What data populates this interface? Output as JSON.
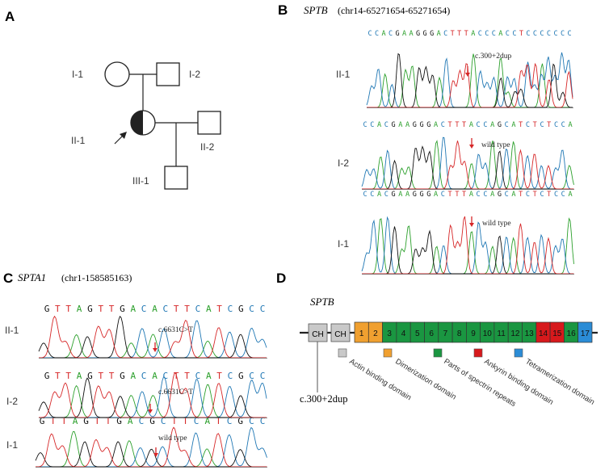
{
  "colors": {
    "A": "#2ca02c",
    "C": "#1f77b4",
    "G": "#111111",
    "T": "#d62728",
    "arrow": "#d62728",
    "grey_domain": "#c9c9c9",
    "orange_domain": "#f0a030",
    "green_domain": "#1a9641",
    "red_domain": "#d7191c",
    "blue_domain": "#2b8cd6"
  },
  "panels": {
    "A": {
      "letter": "A",
      "members": [
        {
          "id": "I-1",
          "sex": "female",
          "status": "unaffected"
        },
        {
          "id": "I-2",
          "sex": "male",
          "status": "unaffected"
        },
        {
          "id": "II-1",
          "sex": "female",
          "status": "affected-half",
          "proband": true
        },
        {
          "id": "II-2",
          "sex": "male",
          "status": "unaffected"
        },
        {
          "id": "III-1",
          "sex": "male",
          "status": "unaffected"
        }
      ]
    },
    "B": {
      "letter": "B",
      "gene": "SPTB",
      "locus": "(chr14-65271654-65271654)",
      "tracks": [
        {
          "label": "II-1",
          "sequence": "CCACGAAGGGACTTTACCCACCTCCCCCCC",
          "annotation": "c.300+2dup"
        },
        {
          "label": "I-2",
          "sequence": "CCACGAAGGGACTTTACCAGCATCTCTCCA",
          "annotation": "wild type"
        },
        {
          "label": "I-1",
          "sequence": "CCACGAAGGGACTTTACCAGCATCTCTCCA",
          "annotation": "wild type"
        }
      ]
    },
    "C": {
      "letter": "C",
      "gene": "SPTA1",
      "locus": "(chr1-158585163)",
      "tracks": [
        {
          "label": "II-1",
          "sequence": "GTTAGTTGACACTTCATCGCC",
          "annotation": "c.6631C>T"
        },
        {
          "label": "I-2",
          "sequence": "GTTAGTTGACACTTCATCGCC",
          "annotation": "c.6631C>T"
        },
        {
          "label": "I-1",
          "sequence": "GTTAGTTGACGCTTCATCGCC",
          "annotation": "wild type"
        }
      ]
    },
    "D": {
      "letter": "D",
      "gene": "SPTB",
      "ch_labels": [
        "CH",
        "CH"
      ],
      "repeats": [
        "1",
        "2",
        "3",
        "4",
        "5",
        "6",
        "7",
        "8",
        "9",
        "10",
        "11",
        "12",
        "13",
        "14",
        "15",
        "16",
        "17"
      ],
      "variant": "c.300+2dup",
      "legend": [
        {
          "label": "Actin binding domain",
          "color": "grey"
        },
        {
          "label": "Dimerization domain",
          "color": "orange"
        },
        {
          "label": "Parts of spectrin repeats",
          "color": "green"
        },
        {
          "label": "Ankyrin binding domain",
          "color": "red"
        },
        {
          "label": "Tetramerization domain",
          "color": "blue"
        }
      ]
    }
  }
}
